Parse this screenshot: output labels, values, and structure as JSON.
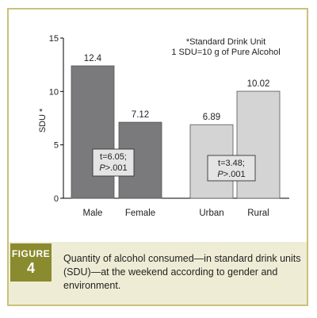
{
  "chart_data": {
    "type": "bar",
    "categories": [
      "Male",
      "Female",
      "Urban",
      "Rural"
    ],
    "values": [
      12.4,
      7.12,
      6.89,
      10.02
    ],
    "value_labels": [
      "12.4",
      "7.12",
      "6.89",
      "10.02"
    ],
    "bar_colors": [
      "#7a7a7c",
      "#7a7a7c",
      "#d4d4d4",
      "#d4d4d4"
    ],
    "ylim": [
      0,
      15
    ],
    "yticks": [
      0,
      5,
      10,
      15
    ],
    "ylabel": "SDU",
    "ylabel_mark": "*",
    "grid": false,
    "note_lines": [
      "*Standard Drink Unit",
      "1 SDU=10 g of Pure Alcohol"
    ],
    "stat_boxes": [
      {
        "line1": "t=6.05;",
        "p_letter": "P",
        "p_rest": ">.001"
      },
      {
        "line1": "t=3.48;",
        "p_letter": "P",
        "p_rest": ">.001"
      }
    ]
  },
  "figure": {
    "word": "FIGURE",
    "number": "4",
    "caption": "Quantity of alcohol consumed—in standard drink units (SDU)—at the weekend according to gender and environment."
  },
  "colors": {
    "frame": "#c9c27a",
    "caption_band": "#efecd6",
    "figure_badge": "#8a8a2e"
  }
}
